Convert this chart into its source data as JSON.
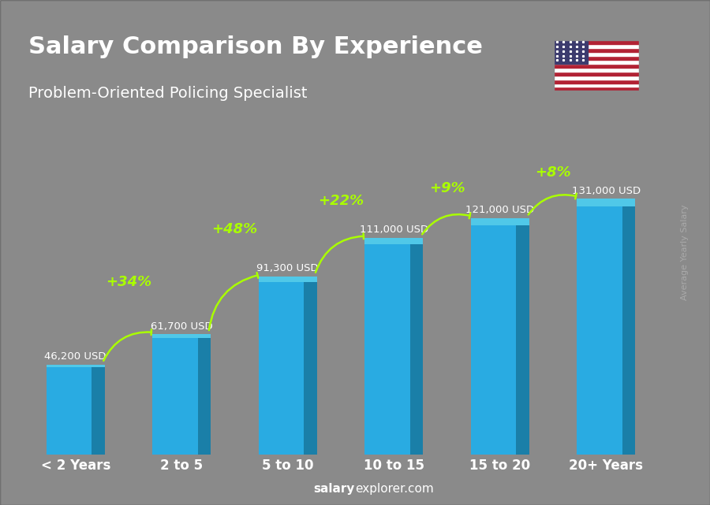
{
  "categories": [
    "< 2 Years",
    "2 to 5",
    "5 to 10",
    "10 to 15",
    "15 to 20",
    "20+ Years"
  ],
  "values": [
    46200,
    61700,
    91300,
    111000,
    121000,
    131000
  ],
  "labels": [
    "46,200 USD",
    "61,700 USD",
    "91,300 USD",
    "111,000 USD",
    "121,000 USD",
    "131,000 USD"
  ],
  "pct_changes": [
    "+34%",
    "+48%",
    "+22%",
    "+9%",
    "+8%"
  ],
  "bar_color": "#29ABE2",
  "bar_edge_color": "#1A8BB5",
  "title": "Salary Comparison By Experience",
  "subtitle": "Problem-Oriented Policing Specialist",
  "ylabel": "Average Yearly Salary",
  "source": "salaryexplorer.com",
  "bg_color": "#1a1a2e",
  "title_color": "#FFFFFF",
  "subtitle_color": "#FFFFFF",
  "label_color": "#FFFFFF",
  "pct_color": "#AAFF00",
  "cat_color": "#FFFFFF",
  "source_bold": "salary",
  "source_normal": "explorer.com"
}
